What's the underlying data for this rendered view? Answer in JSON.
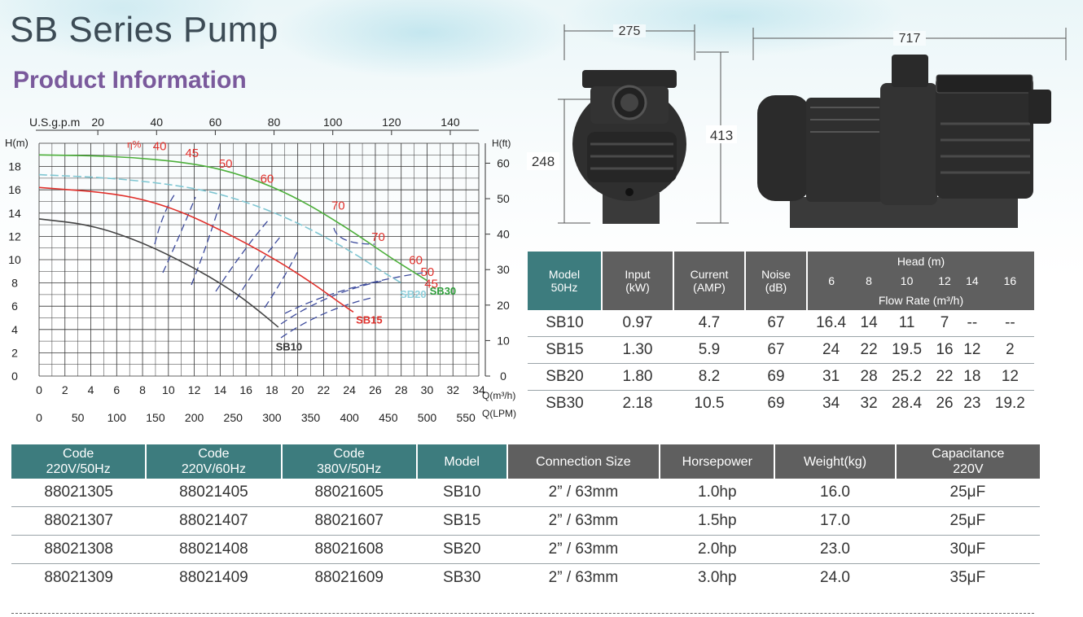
{
  "page": {
    "title": "SB Series Pump",
    "subtitle": "Product Information"
  },
  "chart_data": {
    "type": "line",
    "title": "",
    "ylabel": "H(m)",
    "y2label": "H(ft)",
    "xlabel": "Q(m³/h)",
    "x2label": "Q(LPM)",
    "top_axis_label": "U.S.g.p.m",
    "xlim": [
      0,
      34
    ],
    "ylim": [
      0,
      20
    ],
    "x_ticks_m3h": [
      "0",
      "2",
      "4",
      "6",
      "8",
      "10",
      "12",
      "14",
      "16",
      "18",
      "20",
      "22",
      "24",
      "26",
      "28",
      "30",
      "32",
      "34"
    ],
    "x_ticks_lpm": [
      "0",
      "50",
      "100",
      "150",
      "200",
      "250",
      "300",
      "350",
      "400",
      "450",
      "500",
      "550"
    ],
    "x_ticks_gpm": [
      "20",
      "40",
      "60",
      "80",
      "100",
      "120",
      "140"
    ],
    "y_ticks_m": [
      "0",
      "2",
      "4",
      "6",
      "8",
      "10",
      "12",
      "14",
      "16",
      "18"
    ],
    "y_ticks_ft": [
      "0",
      "10",
      "20",
      "30",
      "40",
      "50",
      "60"
    ],
    "grid": true,
    "series": [
      {
        "name": "SB10",
        "color": "#444444",
        "dash": false,
        "x": [
          0,
          4,
          8,
          12,
          15,
          17,
          18.5
        ],
        "y": [
          13.5,
          13,
          11.5,
          9.3,
          7.3,
          5.6,
          4.2
        ]
      },
      {
        "name": "SB15",
        "color": "#e0302b",
        "dash": false,
        "x": [
          0,
          6,
          10,
          14,
          18,
          21,
          23.5,
          24.3
        ],
        "y": [
          16.2,
          15.7,
          14.6,
          12.6,
          10.2,
          8.1,
          6.1,
          5.5
        ]
      },
      {
        "name": "SB20",
        "color": "#7fc6d2",
        "dash": true,
        "x": [
          0,
          6,
          12,
          16,
          20,
          24,
          26.5,
          28
        ],
        "y": [
          17.3,
          17,
          16.2,
          15,
          13.2,
          10.8,
          9,
          8
        ]
      },
      {
        "name": "SB30",
        "color": "#4caf3a",
        "dash": false,
        "x": [
          0,
          6,
          12,
          16,
          20,
          24,
          27,
          29,
          30
        ],
        "y": [
          19,
          18.9,
          18.3,
          17.2,
          15.3,
          12.6,
          10.3,
          8.9,
          8.2
        ]
      }
    ],
    "curve_labels": [
      {
        "text": "SB10",
        "color": "#333333",
        "x": 18.3,
        "y": 2.2
      },
      {
        "text": "SB15",
        "color": "#e0302b",
        "x": 24.5,
        "y": 4.5
      },
      {
        "text": "SB20",
        "color": "#8fd0dc",
        "x": 27.9,
        "y": 6.7
      },
      {
        "text": "SB30",
        "color": "#2e9e3a",
        "x": 30.2,
        "y": 7.0
      }
    ],
    "efficiency_labels": [
      {
        "text": "η%",
        "x": 6.8,
        "y": 19.6,
        "size": 12
      },
      {
        "text": "40",
        "x": 8.8,
        "y": 19.4,
        "size": 15
      },
      {
        "text": "45",
        "x": 11.3,
        "y": 18.8,
        "size": 15
      },
      {
        "text": "50",
        "x": 13.9,
        "y": 17.9,
        "size": 15
      },
      {
        "text": "60",
        "x": 17.1,
        "y": 16.6,
        "size": 15
      },
      {
        "text": "70",
        "x": 22.6,
        "y": 14.3,
        "size": 15
      },
      {
        "text": "70",
        "x": 25.7,
        "y": 11.6,
        "size": 15
      },
      {
        "text": "60",
        "x": 28.6,
        "y": 9.6,
        "size": 15
      },
      {
        "text": "50",
        "x": 29.5,
        "y": 8.6,
        "size": 15
      },
      {
        "text": "45",
        "x": 29.8,
        "y": 7.6,
        "size": 15
      }
    ]
  },
  "dimensions": {
    "front_width": "275",
    "front_height": "413",
    "front_inlet_height": "248",
    "side_length": "717"
  },
  "spec_table": {
    "headers": {
      "model": [
        "Model",
        "50Hz"
      ],
      "input": [
        "Input",
        "(kW)"
      ],
      "current": [
        "Current",
        "(AMP)"
      ],
      "noise": [
        "Noise",
        "(dB)"
      ],
      "head": "Head (m)",
      "head_values": [
        "6",
        "8",
        "10",
        "12",
        "14",
        "16"
      ],
      "flow_rate": "Flow Rate (m³/h)"
    },
    "rows": [
      [
        "SB10",
        "0.97",
        "4.7",
        "67",
        "16.4",
        "14",
        "11",
        "7",
        "--",
        "--"
      ],
      [
        "SB15",
        "1.30",
        "5.9",
        "67",
        "24",
        "22",
        "19.5",
        "16",
        "12",
        "2"
      ],
      [
        "SB20",
        "1.80",
        "8.2",
        "69",
        "31",
        "28",
        "25.2",
        "22",
        "18",
        "12"
      ],
      [
        "SB30",
        "2.18",
        "10.5",
        "69",
        "34",
        "32",
        "28.4",
        "26",
        "23",
        "19.2"
      ]
    ]
  },
  "code_table": {
    "headers": [
      [
        "Code",
        "220V/50Hz"
      ],
      [
        "Code",
        "220V/60Hz"
      ],
      [
        "Code",
        "380V/50Hz"
      ],
      [
        "Model",
        ""
      ],
      [
        "Connection Size",
        ""
      ],
      [
        "Horsepower",
        ""
      ],
      [
        "Weight(kg)",
        ""
      ],
      [
        "Capacitance",
        "220V"
      ]
    ],
    "rows": [
      [
        "88021305",
        "88021405",
        "88021605",
        "SB10",
        "2” / 63mm",
        "1.0hp",
        "16.0",
        "25μF"
      ],
      [
        "88021307",
        "88021407",
        "88021607",
        "SB15",
        "2” / 63mm",
        "1.5hp",
        "17.0",
        "25μF"
      ],
      [
        "88021308",
        "88021408",
        "88021608",
        "SB20",
        "2” / 63mm",
        "2.0hp",
        "23.0",
        "30μF"
      ],
      [
        "88021309",
        "88021409",
        "88021609",
        "SB30",
        "2” / 63mm",
        "3.0hp",
        "24.0",
        "35μF"
      ]
    ]
  },
  "colors": {
    "header_teal": "#3d7c7e",
    "header_gray": "#5f5f5f",
    "title": "#3c4b55",
    "subtitle": "#7a5a9c"
  }
}
